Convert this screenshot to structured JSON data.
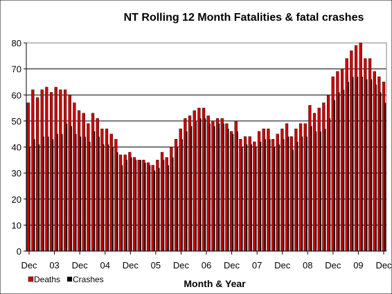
{
  "chart_data": {
    "type": "bar",
    "title": "NT Rolling 12 Month Fatalities & fatal crashes",
    "xlabel": "Month & Year",
    "ylabel": "",
    "ylim": [
      0,
      80
    ],
    "yticks": [
      0,
      10,
      20,
      30,
      40,
      50,
      60,
      70,
      80
    ],
    "grid": true,
    "legend_position": "bottom-left",
    "x_tick_labels": [
      "Dec",
      "03",
      "Dec",
      "04",
      "Dec",
      "05",
      "Dec",
      "06",
      "Dec",
      "07",
      "Dec",
      "08",
      "Dec",
      "09",
      "Dec"
    ],
    "categories_count": 78,
    "series": [
      {
        "name": "Deaths",
        "color": "#cc0000",
        "values": [
          57,
          62,
          59,
          62,
          63,
          61,
          63,
          62,
          62,
          60,
          57,
          54,
          53,
          49,
          53,
          51,
          47,
          47,
          45,
          43,
          37,
          37,
          38,
          36,
          35,
          35,
          34,
          33,
          35,
          38,
          36,
          40,
          43,
          47,
          51,
          52,
          54,
          55,
          55,
          52,
          50,
          51,
          51,
          49,
          46,
          50,
          43,
          44,
          44,
          42,
          46,
          47,
          47,
          43,
          45,
          47,
          49,
          44,
          47,
          49,
          49,
          56,
          53,
          55,
          57,
          60,
          67,
          69,
          70,
          74,
          77,
          79,
          80,
          74,
          74,
          69,
          67,
          65
        ]
      },
      {
        "name": "Crashes",
        "color": "#000000",
        "values": [
          40,
          43,
          41,
          44,
          44,
          43,
          45,
          45,
          49,
          48,
          45,
          44,
          44,
          42,
          46,
          44,
          41,
          41,
          40,
          38,
          33,
          35,
          36,
          35,
          35,
          34,
          33,
          31,
          32,
          35,
          33,
          36,
          40,
          43,
          46,
          48,
          50,
          51,
          51,
          49,
          48,
          49,
          49,
          47,
          45,
          46,
          40,
          41,
          41,
          40,
          42,
          43,
          43,
          40,
          41,
          43,
          44,
          39,
          42,
          44,
          44,
          48,
          46,
          46,
          47,
          51,
          58,
          61,
          62,
          65,
          67,
          67,
          67,
          66,
          66,
          64,
          61,
          57
        ]
      }
    ]
  }
}
